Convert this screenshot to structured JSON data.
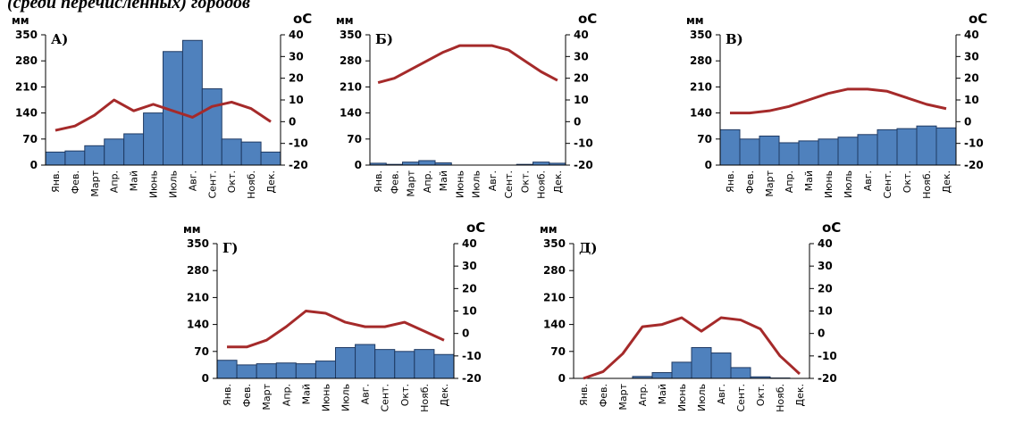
{
  "header": {
    "text": "(среди перечисленных) городов"
  },
  "months": [
    "Янв.",
    "Фев.",
    "Март",
    "Апр.",
    "Май",
    "Июнь",
    "Июль",
    "Авг.",
    "Сент.",
    "Окт.",
    "Нояб.",
    "Дек."
  ],
  "colors": {
    "bar_fill": "#4f81bd",
    "bar_stroke": "#1f3a63",
    "line": "#a52a2a"
  },
  "chart_data": [
    {
      "type": "bar+line",
      "label": "А)",
      "left_unit": "мм",
      "right_unit": "оC",
      "ylim": [
        0,
        350
      ],
      "y2lim": [
        -20,
        40
      ],
      "yticks": [
        0,
        70,
        140,
        210,
        280,
        350
      ],
      "y2ticks": [
        -20,
        -10,
        0,
        10,
        20,
        30,
        40
      ],
      "precipitation": [
        35,
        38,
        52,
        70,
        84,
        140,
        305,
        335,
        205,
        70,
        62,
        35
      ],
      "temperature": [
        -4,
        -2,
        3,
        10,
        5,
        8,
        5,
        2,
        7,
        9,
        6,
        0
      ]
    },
    {
      "type": "bar+line",
      "label": "Б)",
      "left_unit": "мм",
      "right_unit": "оC",
      "ylim": [
        0,
        350
      ],
      "y2lim": [
        -20,
        40
      ],
      "yticks": [
        0,
        70,
        140,
        210,
        280,
        350
      ],
      "y2ticks": [
        -20,
        -10,
        0,
        10,
        20,
        30,
        40
      ],
      "precipitation": [
        5,
        2,
        8,
        12,
        6,
        0,
        0,
        0,
        0,
        2,
        8,
        5
      ],
      "temperature": [
        18,
        20,
        24,
        28,
        32,
        35,
        35,
        35,
        33,
        28,
        23,
        19
      ]
    },
    {
      "type": "bar+line",
      "label": "В)",
      "left_unit": "мм",
      "right_unit": "оC",
      "ylim": [
        0,
        350
      ],
      "y2lim": [
        -20,
        40
      ],
      "yticks": [
        0,
        70,
        140,
        210,
        280,
        350
      ],
      "y2ticks": [
        -20,
        -10,
        0,
        10,
        20,
        30,
        40
      ],
      "precipitation": [
        95,
        70,
        78,
        60,
        65,
        70,
        75,
        82,
        95,
        98,
        105,
        100
      ],
      "temperature": [
        4,
        4,
        5,
        7,
        10,
        13,
        15,
        15,
        14,
        11,
        8,
        6
      ]
    },
    {
      "type": "bar+line",
      "label": "Г)",
      "left_unit": "мм",
      "right_unit": "оC",
      "ylim": [
        0,
        350
      ],
      "y2lim": [
        -20,
        40
      ],
      "yticks": [
        0,
        70,
        140,
        210,
        280,
        350
      ],
      "y2ticks": [
        -20,
        -10,
        0,
        10,
        20,
        30,
        40
      ],
      "precipitation": [
        47,
        35,
        38,
        40,
        38,
        45,
        80,
        88,
        75,
        70,
        75,
        62
      ],
      "temperature": [
        -6,
        -6,
        -3,
        3,
        10,
        9,
        5,
        3,
        3,
        5,
        1,
        -3
      ]
    },
    {
      "type": "bar+line",
      "label": "Д)",
      "left_unit": "мм",
      "right_unit": "оC",
      "ylim": [
        0,
        350
      ],
      "y2lim": [
        -20,
        40
      ],
      "yticks": [
        0,
        70,
        140,
        210,
        280,
        350
      ],
      "y2ticks": [
        -20,
        -10,
        0,
        10,
        20,
        30,
        40
      ],
      "precipitation": [
        0,
        0,
        0,
        5,
        15,
        42,
        80,
        66,
        28,
        4,
        1,
        0
      ],
      "temperature": [
        -20,
        -17,
        -9,
        3,
        4,
        7,
        1,
        7,
        6,
        2,
        -10,
        -18
      ]
    }
  ]
}
